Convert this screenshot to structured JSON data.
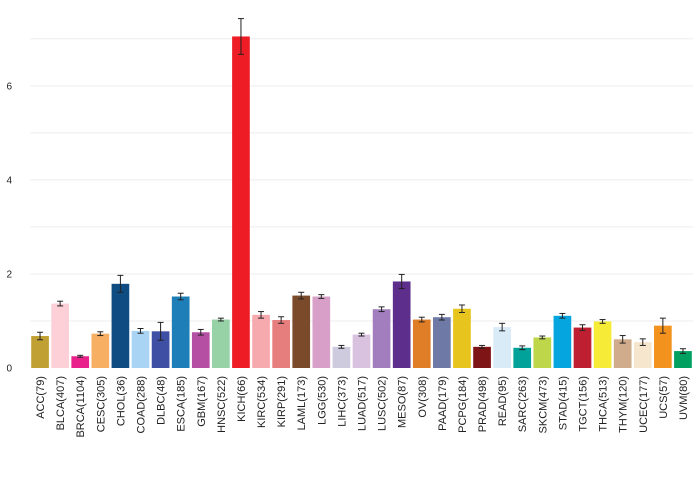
{
  "chart_data": {
    "type": "bar",
    "title": "",
    "xlabel": "",
    "ylabel": "",
    "ylim": [
      0,
      7.4
    ],
    "yticks": [
      0,
      2,
      4,
      6
    ],
    "grid": "horizontal",
    "legend": "none",
    "categories": [
      "ACC(79)",
      "BLCA(407)",
      "BRCA(1104)",
      "CESC(305)",
      "CHOL(36)",
      "COAD(288)",
      "DLBC(48)",
      "ESCA(185)",
      "GBM(167)",
      "HNSC(522)",
      "KICH(66)",
      "KIRC(534)",
      "KIRP(291)",
      "LAML(173)",
      "LGG(530)",
      "LIHC(373)",
      "LUAD(517)",
      "LUSC(502)",
      "MESO(87)",
      "OV(308)",
      "PAAD(179)",
      "PCPG(184)",
      "PRAD(498)",
      "READ(95)",
      "SARC(263)",
      "SKCM(473)",
      "STAD(415)",
      "TGCT(156)",
      "THCA(513)",
      "THYM(120)",
      "UCEC(177)",
      "UCS(57)",
      "UVM(80)"
    ],
    "values": [
      0.68,
      1.37,
      0.25,
      0.73,
      1.79,
      0.79,
      0.78,
      1.52,
      0.76,
      1.03,
      7.05,
      1.13,
      1.02,
      1.54,
      1.52,
      0.45,
      0.71,
      1.25,
      1.84,
      1.03,
      1.08,
      1.26,
      0.45,
      0.87,
      0.43,
      0.65,
      1.11,
      0.86,
      0.99,
      0.61,
      0.55,
      0.9,
      0.36
    ],
    "errors": [
      0.08,
      0.05,
      0.02,
      0.04,
      0.18,
      0.05,
      0.19,
      0.07,
      0.06,
      0.03,
      0.38,
      0.07,
      0.07,
      0.07,
      0.04,
      0.03,
      0.03,
      0.05,
      0.15,
      0.05,
      0.06,
      0.08,
      0.03,
      0.08,
      0.04,
      0.03,
      0.05,
      0.06,
      0.04,
      0.08,
      0.07,
      0.16,
      0.05
    ],
    "colors": [
      "#C0A032",
      "#FDD0D8",
      "#E8228A",
      "#F7AF64",
      "#0F4C81",
      "#A9D4F3",
      "#3E4FA4",
      "#1E7FB8",
      "#B44FA4",
      "#97D1A6",
      "#EE1C25",
      "#F7AAAE",
      "#E77E7E",
      "#7A4A2A",
      "#D8A0C8",
      "#CFCBDF",
      "#D9C1E0",
      "#A27EBE",
      "#5D2E8B",
      "#E07E28",
      "#6E7AA5",
      "#E8C51E",
      "#7E1415",
      "#DAEBF8",
      "#00A299",
      "#BDD64A",
      "#05A5E0",
      "#BF2031",
      "#F6EC38",
      "#D0AC8C",
      "#F6E6CE",
      "#F3931E",
      "#00A060"
    ]
  }
}
